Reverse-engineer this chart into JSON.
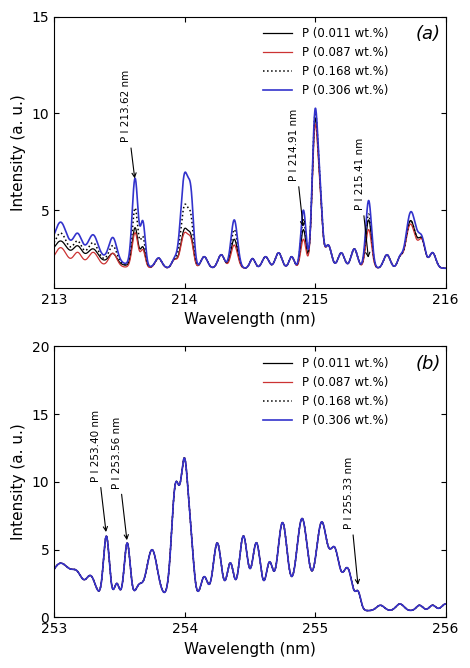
{
  "panel_a": {
    "xlim": [
      213,
      216
    ],
    "ylim": [
      1,
      15
    ],
    "yticks": [
      5,
      10,
      15
    ],
    "xlabel": "Wavelength (nm)",
    "ylabel": "Intensity (a. u.)",
    "label": "(a)"
  },
  "panel_b": {
    "xlim": [
      253,
      256
    ],
    "ylim": [
      0,
      20
    ],
    "yticks": [
      0,
      5,
      10,
      15,
      20
    ],
    "xlabel": "Wavelength (nm)",
    "ylabel": "Intensity (a. u.)",
    "label": "(b)"
  },
  "legend_labels": [
    "P (0.011 wt.%)",
    "P (0.087 wt.%)",
    "P (0.168 wt.%)",
    "P (0.306 wt.%)"
  ],
  "colors": [
    "#000000",
    "#cc3333",
    "#000000",
    "#3333cc"
  ],
  "linestyles": [
    "-",
    "-",
    ":",
    "-"
  ],
  "linewidths": [
    0.9,
    0.9,
    1.1,
    1.2
  ],
  "concentrations": [
    0.011,
    0.087,
    0.168,
    0.306
  ]
}
